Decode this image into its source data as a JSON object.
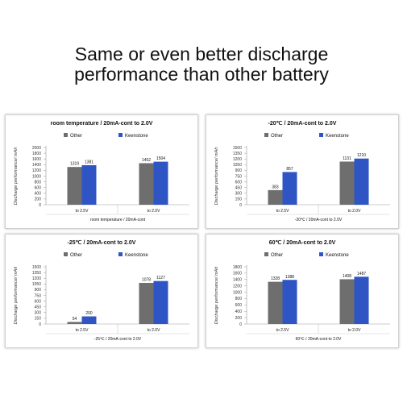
{
  "headline": {
    "line1": "Same or even better discharge",
    "line2": "performance than other battery"
  },
  "colors": {
    "other": "#6e6e6e",
    "keenstone": "#2f55c4"
  },
  "chart_data": [
    {
      "type": "bar",
      "title": "room temperature / 20mA-cont to 2.0V",
      "xlabel": "room temperature  / 20mA-cont",
      "ylabel": "Discharge performance/ mAh",
      "categories": [
        "to 2.5V",
        "to 2.0V"
      ],
      "series": [
        {
          "name": "Other",
          "values": [
            1319,
            1452
          ]
        },
        {
          "name": "Keenstone",
          "values": [
            1381,
            1504
          ]
        }
      ],
      "ylim": [
        0,
        2000
      ],
      "yticks": [
        0,
        200,
        400,
        600,
        800,
        1000,
        1200,
        1400,
        1600,
        1800,
        2000
      ],
      "legend": "top",
      "grid": false
    },
    {
      "type": "bar",
      "title": "-20℃ / 20mA-cont to 2.0V",
      "xlabel": "-20℃ / 20mA-cont to 2.0V",
      "ylabel": "Discharge performance/ mAh",
      "categories": [
        "to 2.5V",
        "to 2.0V"
      ],
      "series": [
        {
          "name": "Other",
          "values": [
            383,
            1131
          ]
        },
        {
          "name": "Keenstone",
          "values": [
            857,
            1210
          ]
        }
      ],
      "ylim": [
        0,
        1500
      ],
      "yticks": [
        0,
        150,
        300,
        450,
        600,
        750,
        900,
        1050,
        1200,
        1350,
        1500
      ],
      "legend": "top",
      "grid": false
    },
    {
      "type": "bar",
      "title": "-25℃ / 20mA-cont to 2.0V",
      "xlabel": "-25℃ / 20mA-cont to 2.0V",
      "ylabel": "Discharge performance/ mAh",
      "categories": [
        "to 2.5V",
        "to 2.0V"
      ],
      "series": [
        {
          "name": "Other",
          "values": [
            54,
            1078
          ]
        },
        {
          "name": "Keenstone",
          "values": [
            200,
            1127
          ]
        }
      ],
      "ylim": [
        0,
        1500
      ],
      "yticks": [
        0,
        150,
        300,
        450,
        600,
        750,
        900,
        1050,
        1200,
        1350,
        1500
      ],
      "legend": "top",
      "grid": false
    },
    {
      "type": "bar",
      "title": "60℃ / 20mA-cont to 2.0V",
      "xlabel": "60℃ / 20mA-cont to 2.0V",
      "ylabel": "Discharge performance/ mAh",
      "categories": [
        "to 2.5V",
        "to 2.0V"
      ],
      "series": [
        {
          "name": "Other",
          "values": [
            1328,
            1408
          ]
        },
        {
          "name": "Keenstone",
          "values": [
            1388,
            1487
          ]
        }
      ],
      "ylim": [
        0,
        1800
      ],
      "yticks": [
        0,
        200,
        400,
        600,
        800,
        1000,
        1200,
        1400,
        1600,
        1800
      ],
      "legend": "top",
      "grid": false
    }
  ]
}
